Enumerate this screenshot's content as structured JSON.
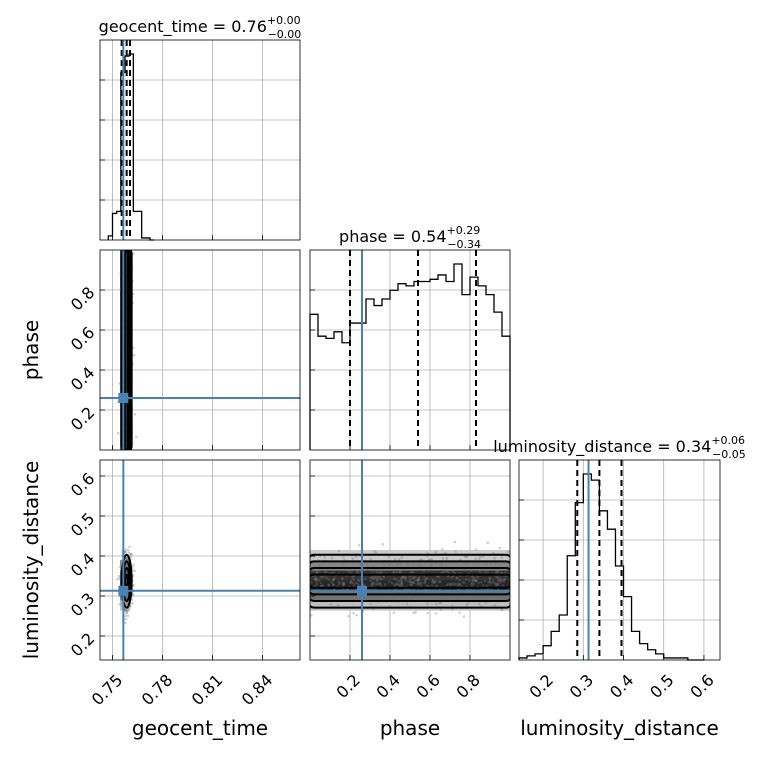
{
  "chart_data": {
    "type": "corner",
    "parameters": [
      "geocent_time",
      "phase",
      "luminosity_distance"
    ],
    "axis_labels": {
      "x": [
        "geocent_time",
        "phase",
        "luminosity_distance"
      ],
      "y_rows": [
        "",
        "phase",
        "luminosity_distance"
      ]
    },
    "titles": [
      {
        "param": "geocent_time",
        "text": "geocent_time = 0.76",
        "plus": "+0.00",
        "minus": "−0.00"
      },
      {
        "param": "phase",
        "text": "phase = 0.54",
        "plus": "+0.29",
        "minus": "−0.34"
      },
      {
        "param": "luminosity_distance",
        "text": "luminosity_distance = 0.34",
        "plus": "+0.06",
        "minus": "−0.05"
      }
    ],
    "ranges": {
      "geocent_time": [
        0.7425,
        0.8625
      ],
      "phase": [
        0.0,
        1.0
      ],
      "luminosity_distance": [
        0.14,
        0.64
      ]
    },
    "ticks": {
      "geocent_time": {
        "values": [
          0.75,
          0.78,
          0.81,
          0.84
        ],
        "labels": [
          "0.75",
          "0.78",
          "0.81",
          "0.84"
        ]
      },
      "phase_x": {
        "values": [
          0.2,
          0.4,
          0.6,
          0.8
        ],
        "labels": [
          "0.2",
          "0.4",
          "0.6",
          "0.8"
        ]
      },
      "phase_y": {
        "values": [
          0.2,
          0.4,
          0.6,
          0.8
        ],
        "labels": [
          "0.2",
          "0.4",
          "0.6",
          "0.8"
        ]
      },
      "luminosity_distance": {
        "values": [
          0.2,
          0.3,
          0.4,
          0.5,
          0.6
        ],
        "labels": [
          "0.2",
          "0.3",
          "0.4",
          "0.5",
          "0.6"
        ]
      }
    },
    "truths": {
      "geocent_time": 0.7565,
      "phase": 0.26,
      "luminosity_distance": 0.313
    },
    "quantiles": {
      "geocent_time": [
        0.7555,
        0.7585,
        0.7605
      ],
      "phase": [
        0.2,
        0.54,
        0.83
      ],
      "luminosity_distance": [
        0.285,
        0.34,
        0.395
      ]
    },
    "histograms": {
      "geocent_time": {
        "edges": [
          0.7475,
          0.75,
          0.7525,
          0.755,
          0.7575,
          0.76,
          0.7625,
          0.765,
          0.7675,
          0.77,
          0.7725,
          0.775
        ],
        "counts": [
          0.02,
          0.13,
          0.14,
          0.82,
          0.9,
          0.91,
          0.14,
          0.14,
          0.01,
          0.01,
          0.0
        ]
      },
      "phase": {
        "edges": [
          0.0,
          0.04,
          0.08,
          0.12,
          0.16,
          0.2,
          0.24,
          0.28,
          0.32,
          0.36,
          0.4,
          0.44,
          0.48,
          0.52,
          0.56,
          0.6,
          0.64,
          0.68,
          0.72,
          0.76,
          0.8,
          0.84,
          0.88,
          0.92,
          0.96,
          1.0
        ],
        "counts": [
          0.62,
          0.52,
          0.51,
          0.54,
          0.49,
          0.58,
          0.58,
          0.69,
          0.66,
          0.69,
          0.73,
          0.76,
          0.75,
          0.77,
          0.77,
          0.78,
          0.8,
          0.77,
          0.85,
          0.71,
          0.79,
          0.75,
          0.71,
          0.63,
          0.52
        ]
      },
      "luminosity_distance": {
        "edges": [
          0.14,
          0.16,
          0.18,
          0.2,
          0.22,
          0.24,
          0.26,
          0.28,
          0.3,
          0.32,
          0.34,
          0.36,
          0.38,
          0.4,
          0.42,
          0.44,
          0.46,
          0.48,
          0.5,
          0.52,
          0.54,
          0.56,
          0.58,
          0.6
        ],
        "counts": [
          0.01,
          0.02,
          0.03,
          0.07,
          0.14,
          0.22,
          0.51,
          0.77,
          0.91,
          0.88,
          0.73,
          0.64,
          0.46,
          0.31,
          0.14,
          0.08,
          0.05,
          0.03,
          0.01,
          0.01,
          0.01,
          0.0,
          0.0
        ]
      }
    },
    "distributions": {
      "geocent_time": {
        "mean": 0.7585,
        "sd": 0.0015
      },
      "phase": {
        "low": 0.0,
        "high": 1.0
      },
      "luminosity_distance": {
        "mean": 0.337,
        "sd": 0.033
      }
    },
    "grid": true
  }
}
